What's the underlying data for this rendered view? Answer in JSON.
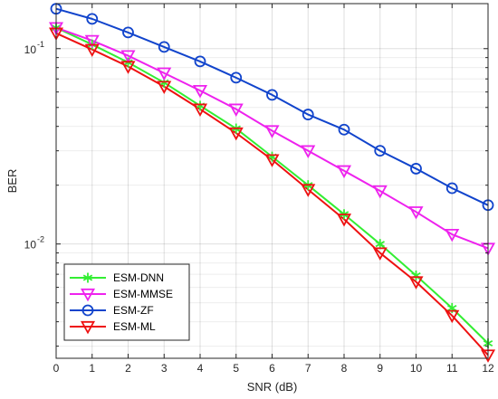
{
  "chart_data": {
    "type": "line",
    "xlabel": "SNR (dB)",
    "ylabel": "BER",
    "x": [
      0,
      1,
      2,
      3,
      4,
      5,
      6,
      7,
      8,
      9,
      10,
      11,
      12
    ],
    "xlim": [
      0,
      12
    ],
    "ylim": [
      0.0026,
      0.17
    ],
    "yscale": "log",
    "grid": true,
    "legend_position": "bottom-left",
    "xticks": [
      0,
      1,
      2,
      3,
      4,
      5,
      6,
      7,
      8,
      9,
      10,
      11,
      12
    ],
    "xtick_labels": [
      "0",
      "1",
      "2",
      "3",
      "4",
      "5",
      "6",
      "7",
      "8",
      "9",
      "10",
      "11",
      "12"
    ],
    "yticks": [
      0.01,
      0.1
    ],
    "ytick_labels": [
      {
        "base": "10",
        "exp": "-2"
      },
      {
        "base": "10",
        "exp": "-1"
      }
    ],
    "series": [
      {
        "name": "ESM-DNN",
        "color": "#33ee33",
        "marker": "asterisk",
        "values": [
          0.128,
          0.105,
          0.085,
          0.067,
          0.051,
          0.039,
          0.028,
          0.02,
          0.0142,
          0.01,
          0.0069,
          0.0047,
          0.0031
        ]
      },
      {
        "name": "ESM-MMSE",
        "color": "#ee22ee",
        "marker": "triangle-down",
        "values": [
          0.128,
          0.11,
          0.092,
          0.075,
          0.061,
          0.049,
          0.038,
          0.03,
          0.0237,
          0.0187,
          0.0146,
          0.0112,
          0.0095
        ]
      },
      {
        "name": "ESM-ZF",
        "color": "#1144cc",
        "marker": "circle",
        "values": [
          0.16,
          0.142,
          0.121,
          0.102,
          0.086,
          0.071,
          0.058,
          0.046,
          0.0385,
          0.03,
          0.0243,
          0.0193,
          0.0158
        ]
      },
      {
        "name": "ESM-ML",
        "color": "#ee1111",
        "marker": "triangle-down",
        "values": [
          0.12,
          0.099,
          0.081,
          0.064,
          0.049,
          0.037,
          0.027,
          0.019,
          0.0134,
          0.009,
          0.0064,
          0.0043,
          0.0027
        ]
      }
    ]
  }
}
